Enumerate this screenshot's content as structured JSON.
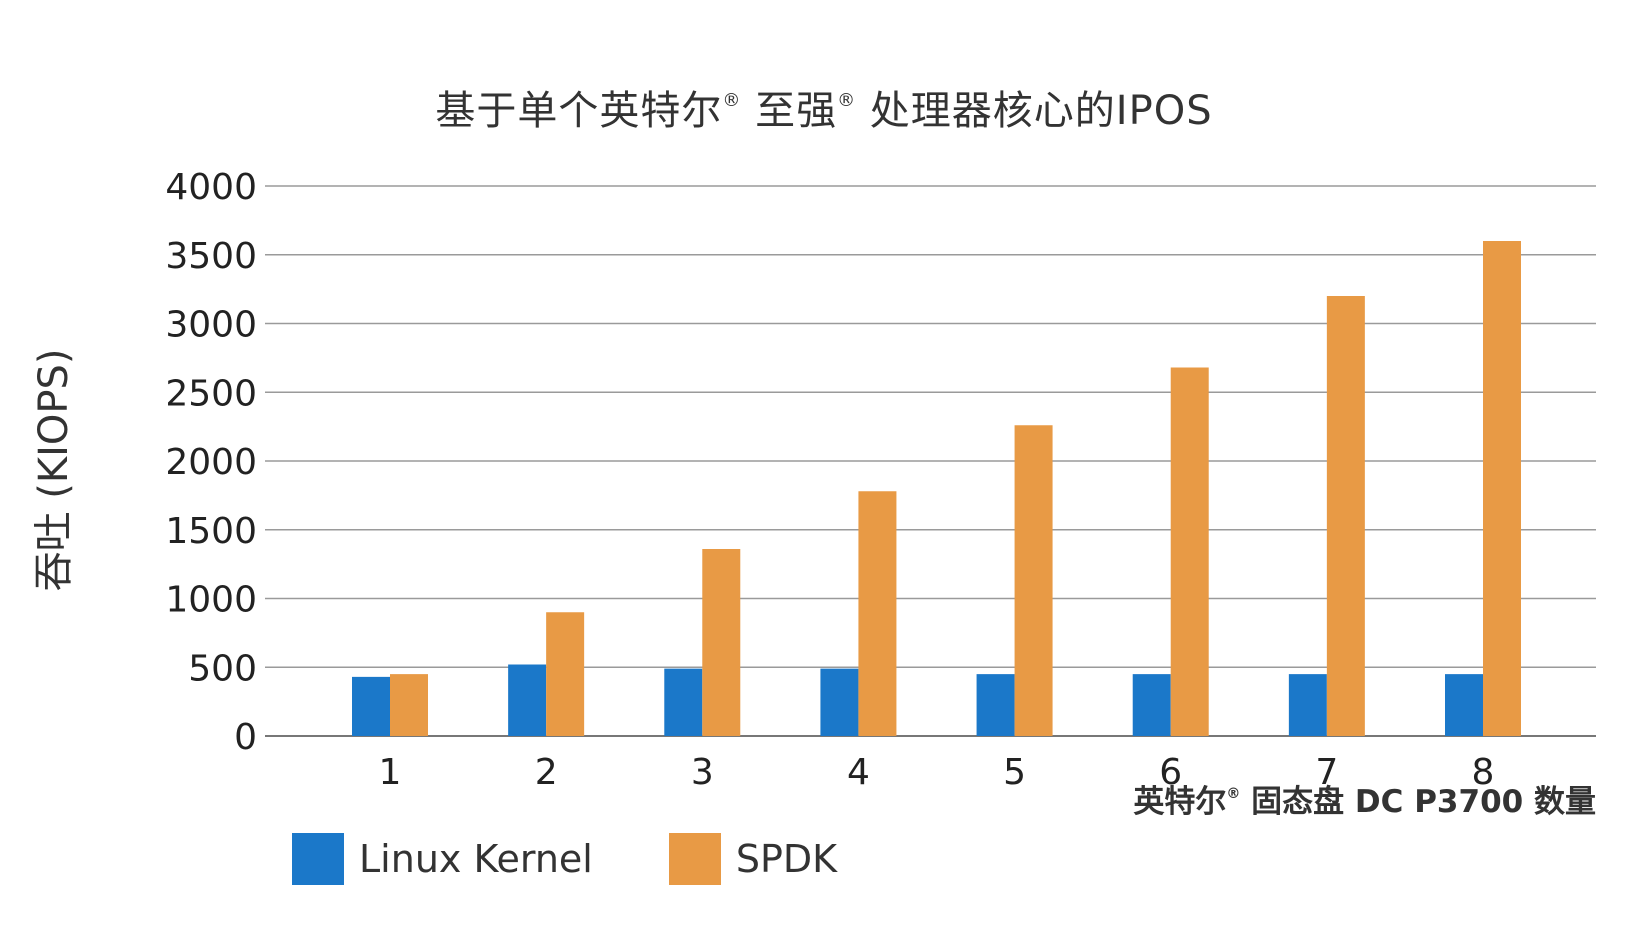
{
  "chart_data": {
    "type": "bar",
    "title": "基于单个英特尔® 至强® 处理器核心的IPOS",
    "xlabel": "英特尔® 固态盘 DC P3700 数量",
    "ylabel": "吞吐 (KIOPS)",
    "categories": [
      "1",
      "2",
      "3",
      "4",
      "5",
      "6",
      "7",
      "8"
    ],
    "series": [
      {
        "name": "Linux Kernel",
        "color": "#1b78c9",
        "values": [
          430,
          520,
          490,
          490,
          450,
          450,
          450,
          450
        ]
      },
      {
        "name": "SPDK",
        "color": "#e89a45",
        "values": [
          450,
          900,
          1360,
          1780,
          2260,
          2680,
          3200,
          3600
        ]
      }
    ],
    "ylim": [
      0,
      4000
    ],
    "yticks": [
      "0",
      "500",
      "1000",
      "1500",
      "2000",
      "2500",
      "3000",
      "3500",
      "4000"
    ],
    "grid": true,
    "legend_position": "bottom-left"
  }
}
